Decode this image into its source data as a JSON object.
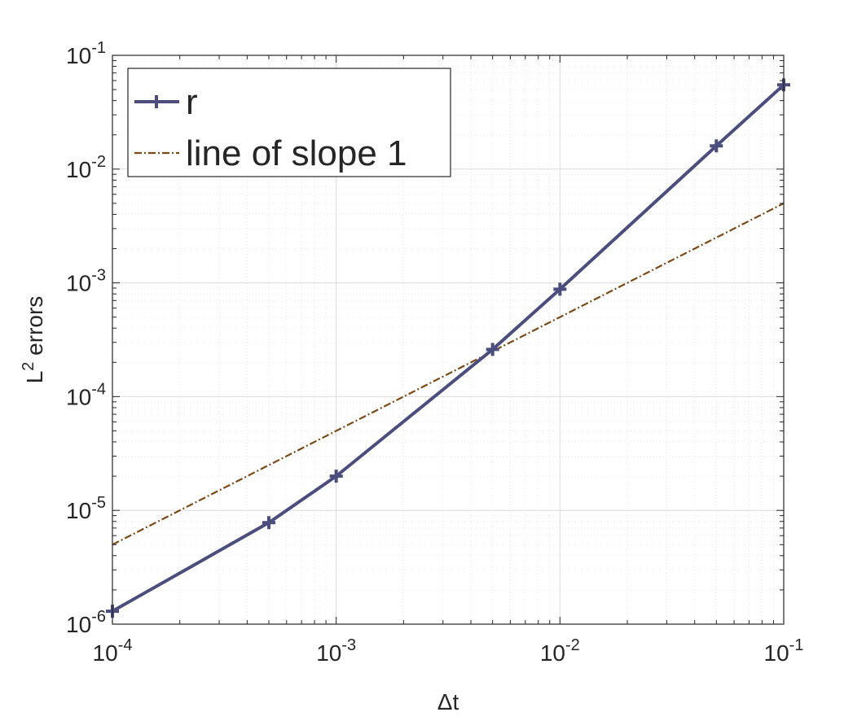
{
  "chart_data": {
    "type": "line",
    "xscale": "log",
    "yscale": "log",
    "xlim": [
      0.0001,
      0.1
    ],
    "ylim": [
      1e-06,
      0.1
    ],
    "grid": true,
    "minor_grid": true,
    "xlabel": "Δt",
    "ylabel": {
      "prefix": "L",
      "sup": "2",
      "suffix": " errors"
    },
    "xticks": [
      {
        "value": 0.0001,
        "base": "10",
        "exp": "-4"
      },
      {
        "value": 0.001,
        "base": "10",
        "exp": "-3"
      },
      {
        "value": 0.01,
        "base": "10",
        "exp": "-2"
      },
      {
        "value": 0.1,
        "base": "10",
        "exp": "-1"
      }
    ],
    "yticks": [
      {
        "value": 1e-06,
        "base": "10",
        "exp": "-6"
      },
      {
        "value": 1e-05,
        "base": "10",
        "exp": "-5"
      },
      {
        "value": 0.0001,
        "base": "10",
        "exp": "-4"
      },
      {
        "value": 0.001,
        "base": "10",
        "exp": "-3"
      },
      {
        "value": 0.01,
        "base": "10",
        "exp": "-2"
      },
      {
        "value": 0.1,
        "base": "10",
        "exp": "-1"
      }
    ],
    "legend_position": "top-left",
    "series": [
      {
        "name": "r",
        "color": "#4b4d7c",
        "style": "solid",
        "marker": "plus",
        "x": [
          0.0001,
          0.0005,
          0.001,
          0.005,
          0.01,
          0.05,
          0.1
        ],
        "y": [
          1.3e-06,
          7.8e-06,
          2e-05,
          0.00026,
          0.00088,
          0.016,
          0.055
        ]
      },
      {
        "name": "line of slope 1",
        "color": "#7b4a17",
        "style": "dash-dot",
        "marker": "none",
        "x": [
          0.0001,
          0.1
        ],
        "y": [
          5e-06,
          0.005
        ]
      }
    ]
  }
}
